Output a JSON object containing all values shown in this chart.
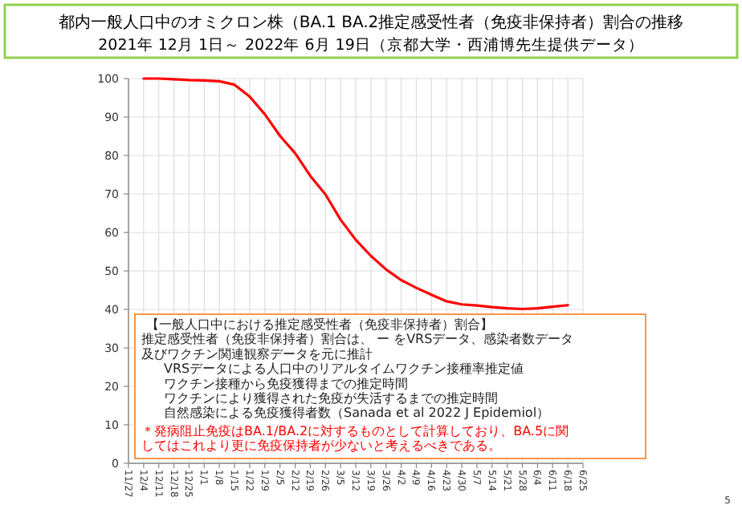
{
  "chart_data": {
    "type": "line",
    "title": "都内一般人口中のオミクロン株（BA.1 BA.2推定感受性者（免疫非保持者）割合の推移",
    "subtitle": "2021年 12月 1日～ 2022年 6月 19日（京都大学・西浦博先生提供データ）",
    "categories": [
      "11/27",
      "12/4",
      "12/11",
      "12/18",
      "12/25",
      "1/1",
      "1/8",
      "1/15",
      "1/22",
      "1/29",
      "2/5",
      "2/12",
      "2/19",
      "2/26",
      "3/5",
      "3/12",
      "3/19",
      "3/26",
      "4/2",
      "4/9",
      "4/16",
      "4/23",
      "4/30",
      "5/7",
      "5/14",
      "5/21",
      "5/28",
      "6/4",
      "6/11",
      "6/18",
      "6/25"
    ],
    "series": [
      {
        "color": "#ff0000",
        "values": [
          null,
          100,
          100,
          99.8,
          99.6,
          99.5,
          99.3,
          98.4,
          95.3,
          90.7,
          85.1,
          80.6,
          74.7,
          69.9,
          63.3,
          58.1,
          53.9,
          50.4,
          47.6,
          45.6,
          43.8,
          42.1,
          41.3,
          41.0,
          40.6,
          40.3,
          40.1,
          40.3,
          40.7,
          41.1,
          null
        ]
      }
    ],
    "ylim": [
      0,
      100
    ],
    "yticks": [
      0,
      10,
      20,
      30,
      40,
      50,
      60,
      70,
      80,
      90,
      100
    ],
    "grid": true,
    "marker": "none",
    "line_style": "solid",
    "annotations": [
      "【一般人口中における推定感受性者（免疫非保持者）割合】",
      "推定感受性者（免疫非保持者）割合は、 ー をVRSデータ、感染者数データ",
      "及びワクチン関連観察データを元に推計",
      "VRSデータによる人口中のリアルタイムワクチン接種率推定値",
      "ワクチン接種から免疫獲得までの推定時間",
      "ワクチンにより獲得された免疫が失活するまでの推定時間",
      "自然感染による免疫獲得者数（Sanada et al 2022 J Epidemiol）",
      "＊発病阻止免疫はBA.1/BA.2に対するものとして計算しており、BA.5に関してはこれより更に免疫保持者が少ないと考えるべきである。",
      "5"
    ]
  }
}
